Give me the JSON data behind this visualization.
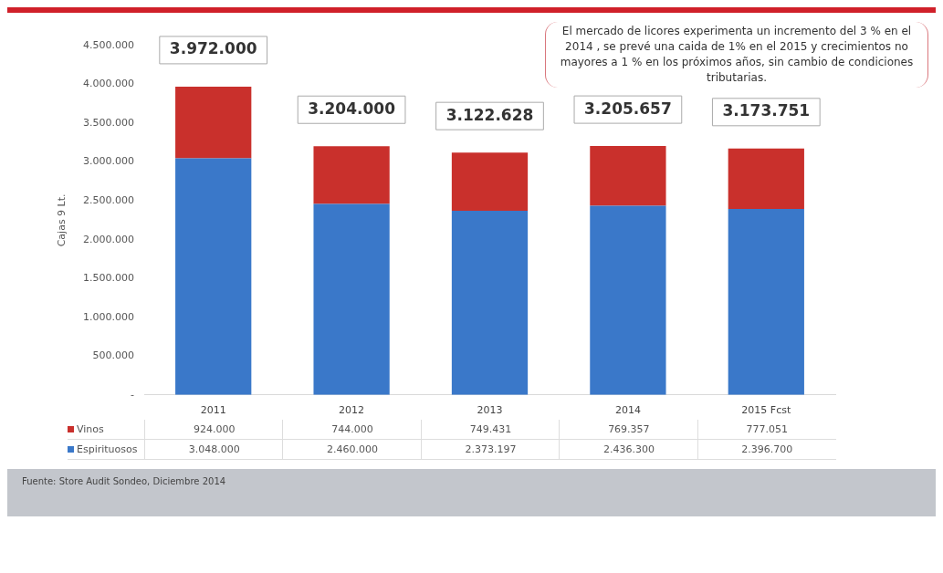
{
  "chart_data": {
    "type": "bar",
    "stacked": true,
    "ylabel": "Cajas 9 Lt.",
    "categories": [
      "2011",
      "2012",
      "2013",
      "2014",
      "2015 Fcst"
    ],
    "series": [
      {
        "name": "Espirituosos",
        "color": "#3a78c9",
        "values": [
          3048000,
          2460000,
          2373197,
          2436300,
          2396700
        ],
        "value_labels": [
          "3.048.000",
          "2.460.000",
          "2.373.197",
          "2.436.300",
          "2.396.700"
        ]
      },
      {
        "name": "Vinos",
        "color": "#c9302c",
        "values": [
          924000,
          744000,
          749431,
          769357,
          777051
        ],
        "value_labels": [
          "924.000",
          "744.000",
          "749.431",
          "769.357",
          "777.051"
        ]
      }
    ],
    "totals": [
      "3.972.000",
      "3.204.000",
      "3.122.628",
      "3.205.657",
      "3.173.751"
    ],
    "ylim": [
      0,
      4500000
    ],
    "yticks": [
      {
        "value": 0,
        "label": "-"
      },
      {
        "value": 500000,
        "label": "500.000"
      },
      {
        "value": 1000000,
        "label": "1.000.000"
      },
      {
        "value": 1500000,
        "label": "1.500.000"
      },
      {
        "value": 2000000,
        "label": "2.000.000"
      },
      {
        "value": 2500000,
        "label": "2.500.000"
      },
      {
        "value": 3000000,
        "label": "3.000.000"
      },
      {
        "value": 3500000,
        "label": "3.500.000"
      },
      {
        "value": 4000000,
        "label": "4.000.000"
      },
      {
        "value": 4500000,
        "label": "4.500.000"
      }
    ],
    "grid": false,
    "legend": "bottom",
    "annotations": [
      "El mercado de licores experimenta un incremento del 3 % en el 2014 , se prevé una caida de 1%  en el 2015 y  crecimientos no mayores  a 1 % en los próximos años, sin cambio de condiciones tributarias.",
      "Fuente:  Store Audit Sondeo, Diciembre 2014"
    ]
  }
}
